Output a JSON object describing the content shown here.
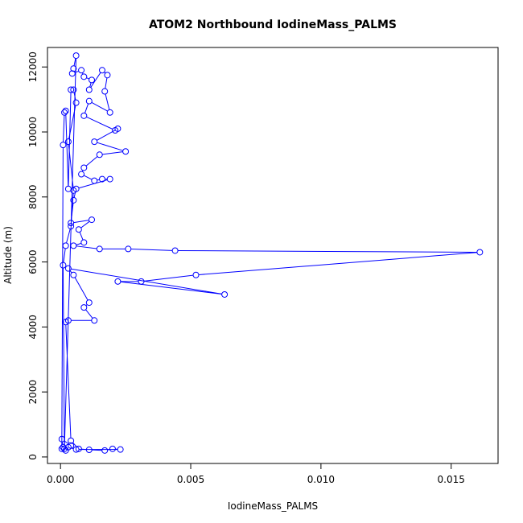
{
  "chart_data": {
    "type": "line",
    "title": "ATOM2 Northbound IodineMass_PALMS",
    "xlabel": "IodineMass_PALMS",
    "ylabel": "Altitude (m)",
    "xlim": [
      -0.0005,
      0.0168
    ],
    "ylim": [
      -200,
      12600
    ],
    "xticks": [
      0.0,
      0.005,
      0.01,
      0.015
    ],
    "xtick_labels": [
      "0.000",
      "0.005",
      "0.010",
      "0.015"
    ],
    "yticks": [
      0,
      2000,
      4000,
      6000,
      8000,
      10000,
      12000
    ],
    "ytick_labels": [
      "0",
      "2000",
      "4000",
      "6000",
      "8000",
      "10000",
      "12000"
    ],
    "grid": false,
    "series": [
      {
        "color": "#0000ff",
        "marker": "open-circle",
        "points": [
          [
            5e-05,
            250
          ],
          [
            0.0001,
            9600
          ],
          [
            0.00015,
            10600
          ],
          [
            0.0002,
            10650
          ],
          [
            0.0003,
            8250
          ],
          [
            0.0004,
            11300
          ],
          [
            0.0005,
            11300
          ],
          [
            0.0006,
            10900
          ],
          [
            0.0003,
            9700
          ],
          [
            0.0005,
            8200
          ],
          [
            0.0004,
            7100
          ],
          [
            0.0002,
            6500
          ],
          [
            0.0001,
            5900
          ],
          [
            0.00015,
            250
          ],
          [
            0.0006,
            12350
          ],
          [
            0.0005,
            11950
          ],
          [
            0.00045,
            11800
          ],
          [
            0.0008,
            11900
          ],
          [
            0.0009,
            11700
          ],
          [
            0.0012,
            11600
          ],
          [
            0.0011,
            11300
          ],
          [
            0.0016,
            11900
          ],
          [
            0.0018,
            11750
          ],
          [
            0.0017,
            11250
          ],
          [
            0.0019,
            10600
          ],
          [
            0.0011,
            10950
          ],
          [
            0.0009,
            10500
          ],
          [
            0.0021,
            10050
          ],
          [
            0.0022,
            10100
          ],
          [
            0.0013,
            9700
          ],
          [
            0.0025,
            9400
          ],
          [
            0.0015,
            9300
          ],
          [
            0.0009,
            8900
          ],
          [
            0.0008,
            8700
          ],
          [
            0.0013,
            8500
          ],
          [
            0.0016,
            8550
          ],
          [
            0.0019,
            8550
          ],
          [
            0.0006,
            8250
          ],
          [
            0.0005,
            7900
          ],
          [
            0.0004,
            7200
          ],
          [
            0.0012,
            7300
          ],
          [
            0.0007,
            7000
          ],
          [
            0.0009,
            6600
          ],
          [
            0.0005,
            6500
          ],
          [
            0.0015,
            6400
          ],
          [
            0.0026,
            6400
          ],
          [
            0.0044,
            6350
          ],
          [
            0.0161,
            6300
          ],
          [
            0.0052,
            5600
          ],
          [
            0.0031,
            5400
          ],
          [
            0.0022,
            5400
          ],
          [
            0.0063,
            5000
          ],
          [
            0.0003,
            5800
          ],
          [
            0.0005,
            5600
          ],
          [
            0.0011,
            4750
          ],
          [
            0.0009,
            4600
          ],
          [
            0.0013,
            4200
          ],
          [
            0.0003,
            4200
          ],
          [
            0.0002,
            4150
          ],
          [
            0.0004,
            500
          ],
          [
            0.0007,
            250
          ],
          [
            0.0011,
            220
          ],
          [
            0.0017,
            200
          ],
          [
            0.002,
            250
          ],
          [
            0.0023,
            230
          ],
          [
            0.0006,
            230
          ],
          [
            0.0003,
            300
          ],
          [
            0.0002,
            200
          ],
          [
            0.0001,
            300
          ],
          [
            5e-05,
            550
          ],
          [
            0.0004,
            350
          ]
        ]
      }
    ]
  }
}
